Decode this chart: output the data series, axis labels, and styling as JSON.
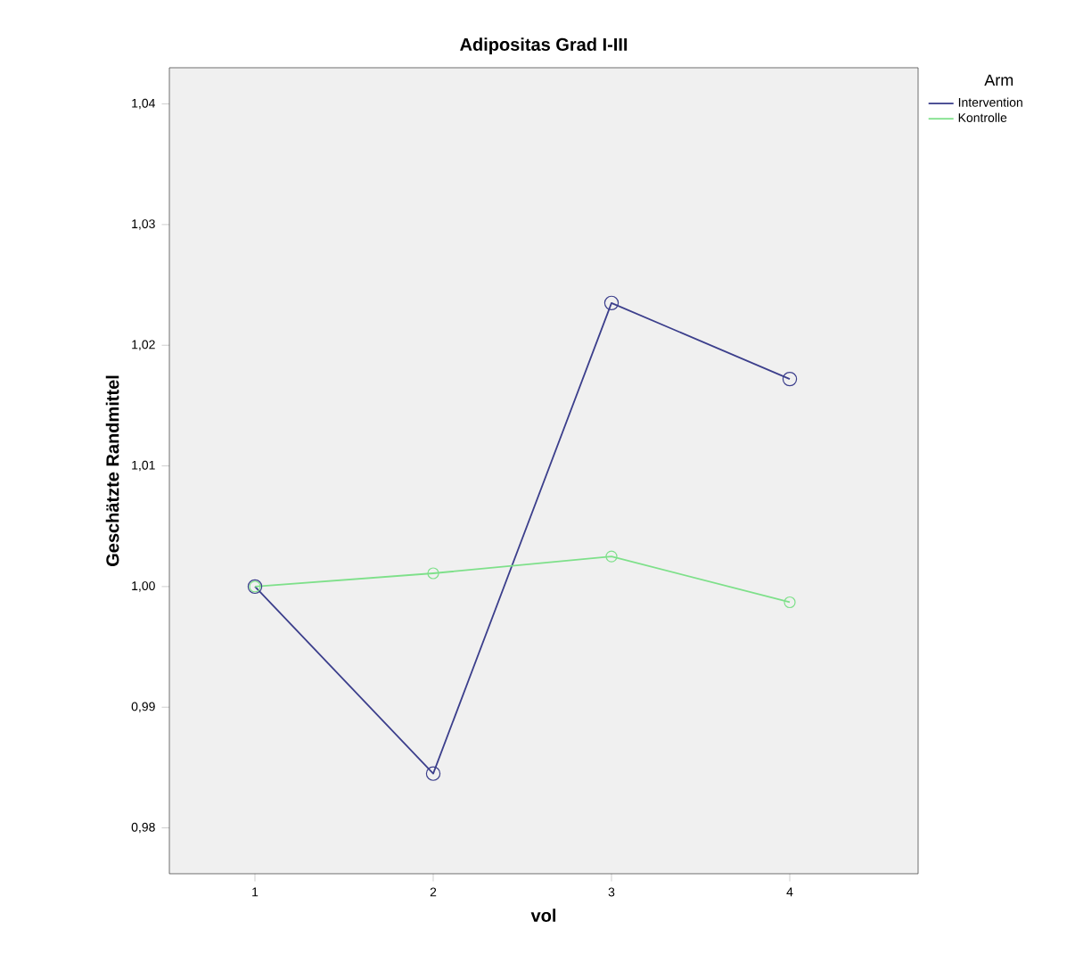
{
  "chart_data": {
    "type": "line",
    "title": "Adipositas Grad I-III",
    "xlabel": "vol",
    "ylabel": "Geschätzte Randmittel",
    "legend_title": "Arm",
    "categories": [
      "1",
      "2",
      "3",
      "4"
    ],
    "series": [
      {
        "name": "Intervention",
        "color": "#3c3f8c",
        "values": [
          1.0,
          0.9845,
          1.0235,
          1.0172
        ]
      },
      {
        "name": "Kontrolle",
        "color": "#7ee08a",
        "values": [
          1.0,
          1.0011,
          1.0025,
          0.9987
        ]
      }
    ],
    "ylim": [
      0.9762,
      1.043
    ],
    "yticks": [
      {
        "value": 0.98,
        "label": "0,98"
      },
      {
        "value": 0.99,
        "label": "0,99"
      },
      {
        "value": 1.0,
        "label": "1,00"
      },
      {
        "value": 1.01,
        "label": "1,01"
      },
      {
        "value": 1.02,
        "label": "1,02"
      },
      {
        "value": 1.03,
        "label": "1,03"
      },
      {
        "value": 1.04,
        "label": "1,04"
      }
    ],
    "legend": "right",
    "marker": "circle",
    "line_style": "solid",
    "grid": false
  }
}
